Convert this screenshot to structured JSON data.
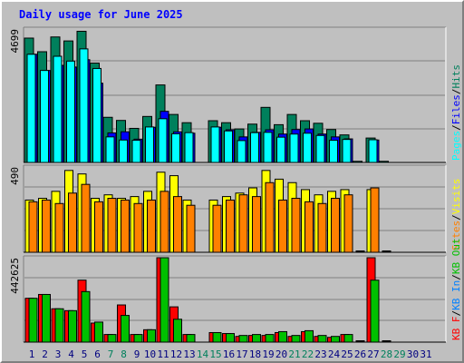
{
  "title": "Daily usage for June 2025",
  "colors": {
    "hits": "#00805c",
    "files": "#0000ff",
    "pages": "#00ffff",
    "visits": "#ffff00",
    "sites": "#ff8000",
    "kbf": "#ff0000",
    "kbin": "#0080ff",
    "kbout": "#00c000",
    "day_weekday": "#000080",
    "day_weekend": "#00805c",
    "separator": "#000000"
  },
  "chart_data": [
    {
      "type": "bar",
      "panel": "hits-files-pages",
      "ytick": "4699",
      "ylim": [
        0,
        4699
      ],
      "legend": [
        {
          "text": "Pages",
          "color_key": "pages"
        },
        {
          "text": "Files",
          "color_key": "files"
        },
        {
          "text": "Hits",
          "color_key": "hits"
        }
      ],
      "categories": [
        "1",
        "2",
        "3",
        "4",
        "5",
        "6",
        "7",
        "8",
        "9",
        "10",
        "11",
        "12",
        "13",
        "14",
        "15",
        "16",
        "17",
        "18",
        "19",
        "20",
        "21",
        "22",
        "23",
        "24",
        "25",
        "26",
        "27",
        "28",
        "29",
        "30",
        "31"
      ],
      "series": [
        {
          "name": "Hits",
          "color_key": "hits",
          "values": [
            4380,
            3900,
            4420,
            4280,
            4620,
            3500,
            1590,
            1480,
            1200,
            1620,
            2730,
            1690,
            1400,
            0,
            1470,
            1400,
            1180,
            1350,
            1940,
            1330,
            1690,
            1470,
            1380,
            1160,
            970,
            40,
            860,
            40,
            0,
            0,
            0
          ]
        },
        {
          "name": "Files",
          "color_key": "files",
          "values": [
            3810,
            3240,
            3420,
            3360,
            3620,
            2790,
            1040,
            1080,
            820,
            1240,
            1800,
            1080,
            1030,
            0,
            1240,
            1150,
            900,
            1060,
            1150,
            1000,
            1160,
            1180,
            1000,
            900,
            830,
            0,
            790,
            0,
            0,
            0,
            0
          ]
        },
        {
          "name": "Pages",
          "color_key": "pages",
          "values": [
            3810,
            3240,
            3740,
            3570,
            4000,
            3310,
            900,
            790,
            780,
            1250,
            1540,
            1010,
            1050,
            0,
            1250,
            1110,
            770,
            1050,
            1060,
            890,
            1000,
            1030,
            950,
            780,
            810,
            0,
            800,
            0,
            0,
            0,
            0
          ]
        }
      ]
    },
    {
      "type": "bar",
      "panel": "visits-sites",
      "ytick": "490",
      "ylim": [
        0,
        490
      ],
      "legend": [
        {
          "text": "Sites",
          "color_key": "sites"
        },
        {
          "text": "Visits",
          "color_key": "visits"
        }
      ],
      "categories": [
        "1",
        "2",
        "3",
        "4",
        "5",
        "6",
        "7",
        "8",
        "9",
        "10",
        "11",
        "12",
        "13",
        "14",
        "15",
        "16",
        "17",
        "18",
        "19",
        "20",
        "21",
        "22",
        "23",
        "24",
        "25",
        "26",
        "27",
        "28",
        "29",
        "30",
        "31"
      ],
      "series": [
        {
          "name": "Visits",
          "color_key": "visits",
          "values": [
            300,
            310,
            350,
            470,
            450,
            310,
            330,
            310,
            320,
            350,
            460,
            440,
            300,
            0,
            300,
            320,
            340,
            370,
            470,
            420,
            400,
            360,
            330,
            350,
            360,
            0,
            360,
            0,
            0,
            0,
            0
          ]
        },
        {
          "name": "Sites",
          "color_key": "sites",
          "values": [
            290,
            300,
            280,
            340,
            390,
            290,
            310,
            300,
            280,
            300,
            350,
            320,
            270,
            0,
            270,
            300,
            330,
            320,
            400,
            300,
            310,
            290,
            280,
            310,
            330,
            0,
            370,
            0,
            0,
            0,
            0
          ]
        }
      ]
    },
    {
      "type": "bar",
      "panel": "kbytes",
      "ytick": "442625",
      "ylim": [
        0,
        442625
      ],
      "legend": [
        {
          "text": "KB F",
          "color_key": "kbf"
        },
        {
          "text": "KB In",
          "color_key": "kbin"
        },
        {
          "text": "KB Out",
          "color_key": "kbout"
        }
      ],
      "categories": [
        "1",
        "2",
        "3",
        "4",
        "5",
        "6",
        "7",
        "8",
        "9",
        "10",
        "11",
        "12",
        "13",
        "14",
        "15",
        "16",
        "17",
        "18",
        "19",
        "20",
        "21",
        "22",
        "23",
        "24",
        "25",
        "26",
        "27",
        "28",
        "29",
        "30",
        "31"
      ],
      "series": [
        {
          "name": "KB F",
          "color_key": "kbf",
          "values": [
            230000,
            250000,
            175000,
            165000,
            325000,
            100000,
            40000,
            195000,
            40000,
            65000,
            442625,
            185000,
            40000,
            0,
            50000,
            45000,
            30000,
            35000,
            35000,
            50000,
            30000,
            55000,
            30000,
            25000,
            40000,
            0,
            442625,
            0,
            0,
            0,
            0
          ]
        },
        {
          "name": "KB Out",
          "color_key": "kbout",
          "values": [
            230000,
            250000,
            175000,
            165000,
            265000,
            105000,
            40000,
            140000,
            40000,
            65000,
            442625,
            120000,
            40000,
            0,
            50000,
            45000,
            35000,
            40000,
            40000,
            55000,
            35000,
            60000,
            35000,
            30000,
            40000,
            0,
            325000,
            0,
            0,
            0,
            0
          ]
        }
      ]
    }
  ]
}
